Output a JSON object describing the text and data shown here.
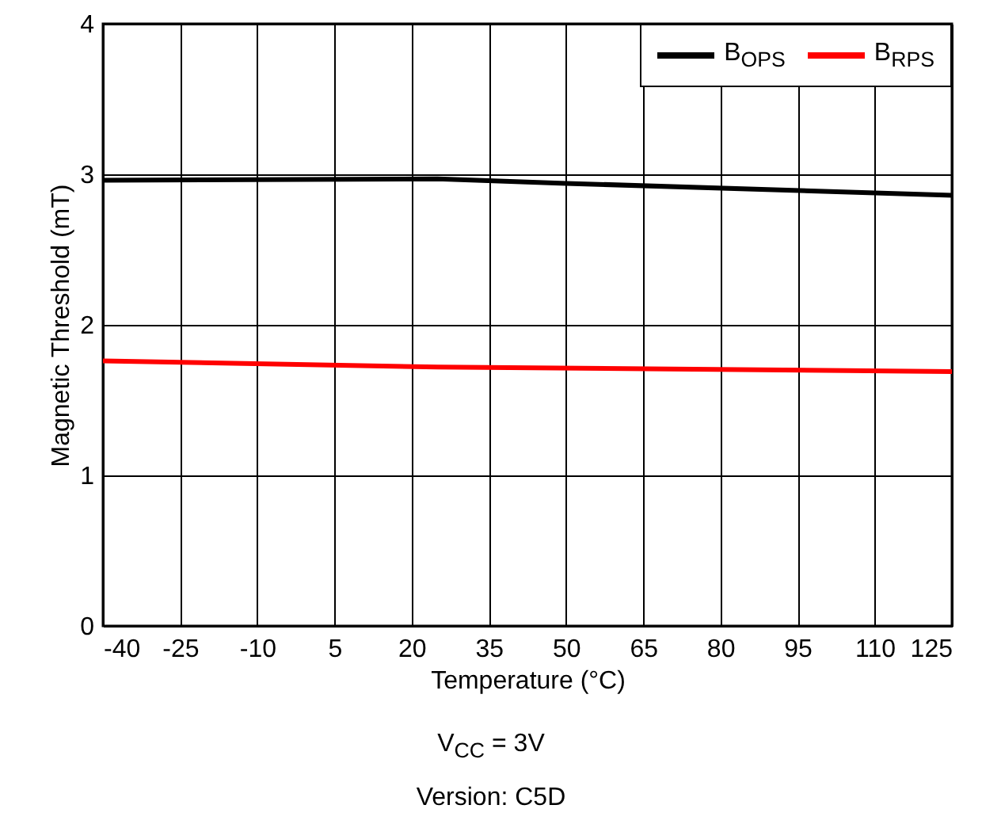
{
  "chart_data": {
    "type": "line",
    "xlabel": "Temperature (°C)",
    "ylabel": "Magnetic Threshold (mT)",
    "x": [
      -40,
      25,
      50,
      125
    ],
    "series": [
      {
        "name": "B$_{OPS}$",
        "color": "#000000",
        "values": [
          2.96,
          2.97,
          2.94,
          2.86
        ]
      },
      {
        "name": "B$_{RPS}$",
        "color": "#ff0000",
        "x": [
          -40,
          25,
          125
        ],
        "values": [
          1.76,
          1.72,
          1.69
        ]
      }
    ],
    "xlim": [
      -40,
      125
    ],
    "xticks": [
      -40,
      -25,
      -10,
      5,
      20,
      35,
      50,
      65,
      80,
      95,
      110,
      125
    ],
    "ylim": [
      0,
      4
    ],
    "yticks": [
      0,
      1,
      2,
      3,
      4
    ],
    "grid": true,
    "legend": "top right",
    "annotations": [
      "V$_{CC}$ = 3V",
      "Version: C5D"
    ]
  }
}
